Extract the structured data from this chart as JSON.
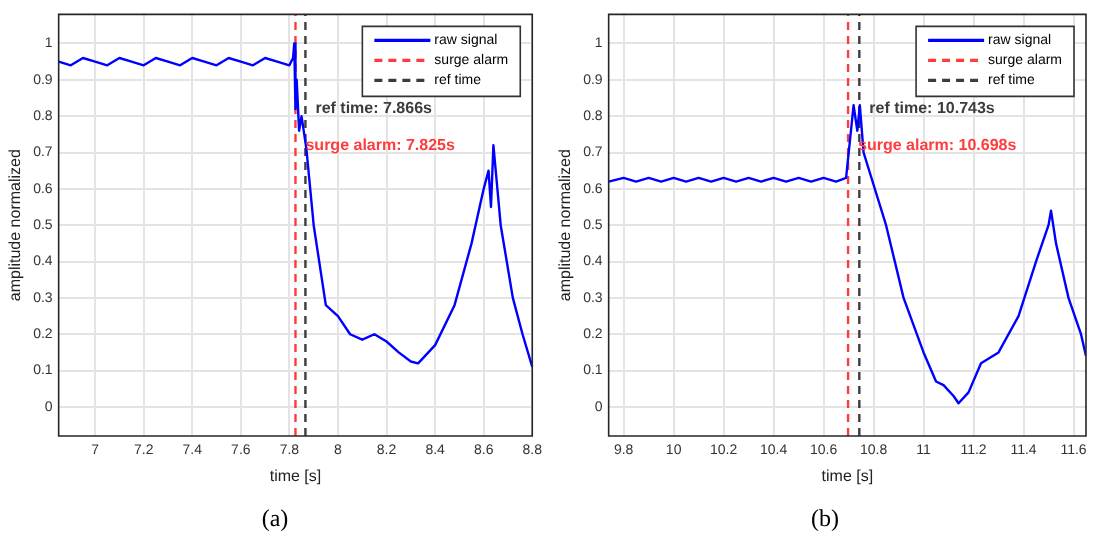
{
  "chart_data": [
    {
      "type": "line",
      "xlabel": "time [s]",
      "ylabel": "amplitude normalized",
      "series": [
        {
          "name": "raw signal",
          "color": "#0000ff",
          "x": [
            6.85,
            6.9,
            6.95,
            7.0,
            7.05,
            7.1,
            7.15,
            7.2,
            7.25,
            7.3,
            7.35,
            7.4,
            7.45,
            7.5,
            7.55,
            7.6,
            7.65,
            7.7,
            7.75,
            7.8,
            7.815,
            7.82,
            7.825,
            7.83,
            7.84,
            7.85,
            7.87,
            7.9,
            7.95,
            8.0,
            8.05,
            8.1,
            8.15,
            8.2,
            8.25,
            8.3,
            8.33,
            8.4,
            8.48,
            8.55,
            8.6,
            8.62,
            8.63,
            8.64,
            8.67,
            8.72,
            8.76,
            8.8
          ],
          "values": [
            0.95,
            0.94,
            0.96,
            0.95,
            0.94,
            0.96,
            0.95,
            0.94,
            0.96,
            0.95,
            0.94,
            0.96,
            0.95,
            0.94,
            0.96,
            0.95,
            0.94,
            0.96,
            0.95,
            0.94,
            0.96,
            1.0,
            0.82,
            0.9,
            0.76,
            0.8,
            0.71,
            0.5,
            0.28,
            0.25,
            0.2,
            0.185,
            0.2,
            0.18,
            0.15,
            0.125,
            0.12,
            0.17,
            0.28,
            0.45,
            0.6,
            0.65,
            0.55,
            0.72,
            0.5,
            0.3,
            0.2,
            0.11
          ]
        },
        {
          "name": "surge alarm",
          "color": "#ff3b3b",
          "line_style": "dashed",
          "x": [
            7.825,
            7.825
          ],
          "values": [
            -0.08,
            1.08
          ]
        },
        {
          "name": "ref time",
          "color": "#3c3c3c",
          "line_style": "dashed",
          "x": [
            7.866,
            7.866
          ],
          "values": [
            -0.08,
            1.08
          ]
        }
      ],
      "xlim": [
        6.85,
        8.8
      ],
      "ylim": [
        -0.08,
        1.08
      ],
      "xticks": [
        7,
        7.2,
        7.4,
        7.6,
        7.8,
        8,
        8.2,
        8.4,
        8.6,
        8.8
      ],
      "yticks": [
        0,
        0.1,
        0.2,
        0.3,
        0.4,
        0.5,
        0.6,
        0.7,
        0.8,
        0.9,
        1
      ],
      "annotations": [
        {
          "text": "ref time: 7.866s",
          "x": 7.866,
          "y": 0.82
        },
        {
          "text": "surge alarm: 7.825s",
          "x": 7.825,
          "y": 0.72
        },
        "(a)"
      ],
      "grid": true,
      "legend": "top right",
      "marker": "none",
      "line_style": "solid"
    },
    {
      "type": "line",
      "xlabel": "time [s]",
      "ylabel": "amplitude normalized",
      "series": [
        {
          "name": "raw signal",
          "color": "#0000ff",
          "x": [
            9.74,
            9.8,
            9.85,
            9.9,
            9.95,
            10.0,
            10.05,
            10.1,
            10.15,
            10.2,
            10.25,
            10.3,
            10.35,
            10.4,
            10.45,
            10.5,
            10.55,
            10.6,
            10.65,
            10.69,
            10.72,
            10.735,
            10.745,
            10.76,
            10.85,
            10.92,
            11.0,
            11.05,
            11.08,
            11.12,
            11.14,
            11.18,
            11.23,
            11.3,
            11.38,
            11.45,
            11.5,
            11.51,
            11.53,
            11.58,
            11.63,
            11.65
          ],
          "values": [
            0.62,
            0.63,
            0.62,
            0.63,
            0.62,
            0.63,
            0.62,
            0.63,
            0.62,
            0.63,
            0.62,
            0.63,
            0.62,
            0.63,
            0.62,
            0.63,
            0.62,
            0.63,
            0.62,
            0.63,
            0.83,
            0.76,
            0.83,
            0.7,
            0.5,
            0.3,
            0.15,
            0.07,
            0.06,
            0.03,
            0.01,
            0.04,
            0.12,
            0.15,
            0.25,
            0.4,
            0.5,
            0.54,
            0.45,
            0.3,
            0.2,
            0.14
          ]
        },
        {
          "name": "surge alarm",
          "color": "#ff3b3b",
          "line_style": "dashed",
          "x": [
            10.698,
            10.698
          ],
          "values": [
            -0.08,
            1.08
          ]
        },
        {
          "name": "ref time",
          "color": "#3c3c3c",
          "line_style": "dashed",
          "x": [
            10.743,
            10.743
          ],
          "values": [
            -0.08,
            1.08
          ]
        }
      ],
      "xlim": [
        9.74,
        11.65
      ],
      "ylim": [
        -0.08,
        1.08
      ],
      "xticks": [
        9.8,
        10,
        10.2,
        10.4,
        10.6,
        10.8,
        11,
        11.2,
        11.4,
        11.6
      ],
      "yticks": [
        0,
        0.1,
        0.2,
        0.3,
        0.4,
        0.5,
        0.6,
        0.7,
        0.8,
        0.9,
        1
      ],
      "annotations": [
        {
          "text": "ref time: 10.743s",
          "x": 10.743,
          "y": 0.82
        },
        {
          "text": "surge alarm: 10.698s",
          "x": 10.698,
          "y": 0.72
        },
        "(b)"
      ],
      "grid": true,
      "legend": "top right",
      "marker": "none",
      "line_style": "solid"
    }
  ]
}
